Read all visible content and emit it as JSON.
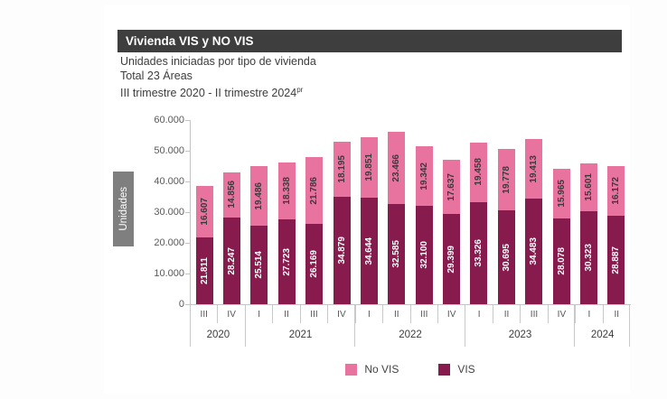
{
  "header": {
    "title": "Vivienda VIS y NO VIS"
  },
  "subtitle": {
    "lines": [
      "Unidades iniciadas por tipo de vivienda",
      "Total 23 Áreas"
    ],
    "range_text": "III trimestre 2020 - II trimestre 2024",
    "range_superscript": "pr"
  },
  "y_axis": {
    "label": "Unidades",
    "ticks": [
      "60.000",
      "50.000",
      "40.000",
      "30.000",
      "20.000",
      "10.000",
      "0"
    ]
  },
  "colors": {
    "vis": "#871b4d",
    "no_vis": "#e8739f",
    "title_bar": "#3e3e3e",
    "axis": "#c4c4c4",
    "y_label_box": "#7f7f7f"
  },
  "chart_data": {
    "type": "bar",
    "stacked": true,
    "title": "Vivienda VIS y NO VIS",
    "subtitle": "Unidades iniciadas por tipo de vivienda — Total 23 Áreas — III trimestre 2020 - II trimestre 2024pr",
    "ylabel": "Unidades",
    "ylim": [
      0,
      60000
    ],
    "grid": false,
    "legend_position": "bottom",
    "categories": [
      "III 2020",
      "IV 2020",
      "I 2021",
      "II 2021",
      "III 2021",
      "IV 2021",
      "I 2022",
      "II 2022",
      "III 2022",
      "IV 2022",
      "I 2023",
      "II 2023",
      "III 2023",
      "IV 2023",
      "I 2024",
      "II 2024"
    ],
    "quarters": [
      "III",
      "IV",
      "I",
      "II",
      "III",
      "IV",
      "I",
      "II",
      "III",
      "IV",
      "I",
      "II",
      "III",
      "IV",
      "I",
      "II"
    ],
    "year_groups": [
      {
        "year": "2020",
        "span": 2
      },
      {
        "year": "2021",
        "span": 4
      },
      {
        "year": "2022",
        "span": 4
      },
      {
        "year": "2023",
        "span": 4
      },
      {
        "year": "2024",
        "span": 2
      }
    ],
    "series": [
      {
        "name": "VIS",
        "color": "#871b4d",
        "values": [
          21811,
          28247,
          25514,
          27723,
          26169,
          34879,
          34644,
          32585,
          32100,
          29399,
          33326,
          30695,
          34483,
          28078,
          30323,
          28887
        ]
      },
      {
        "name": "No VIS",
        "color": "#e8739f",
        "values": [
          16607,
          14856,
          19486,
          18338,
          21786,
          18195,
          19851,
          23466,
          19342,
          17637,
          19458,
          19778,
          19413,
          15965,
          15601,
          16172
        ]
      }
    ]
  }
}
